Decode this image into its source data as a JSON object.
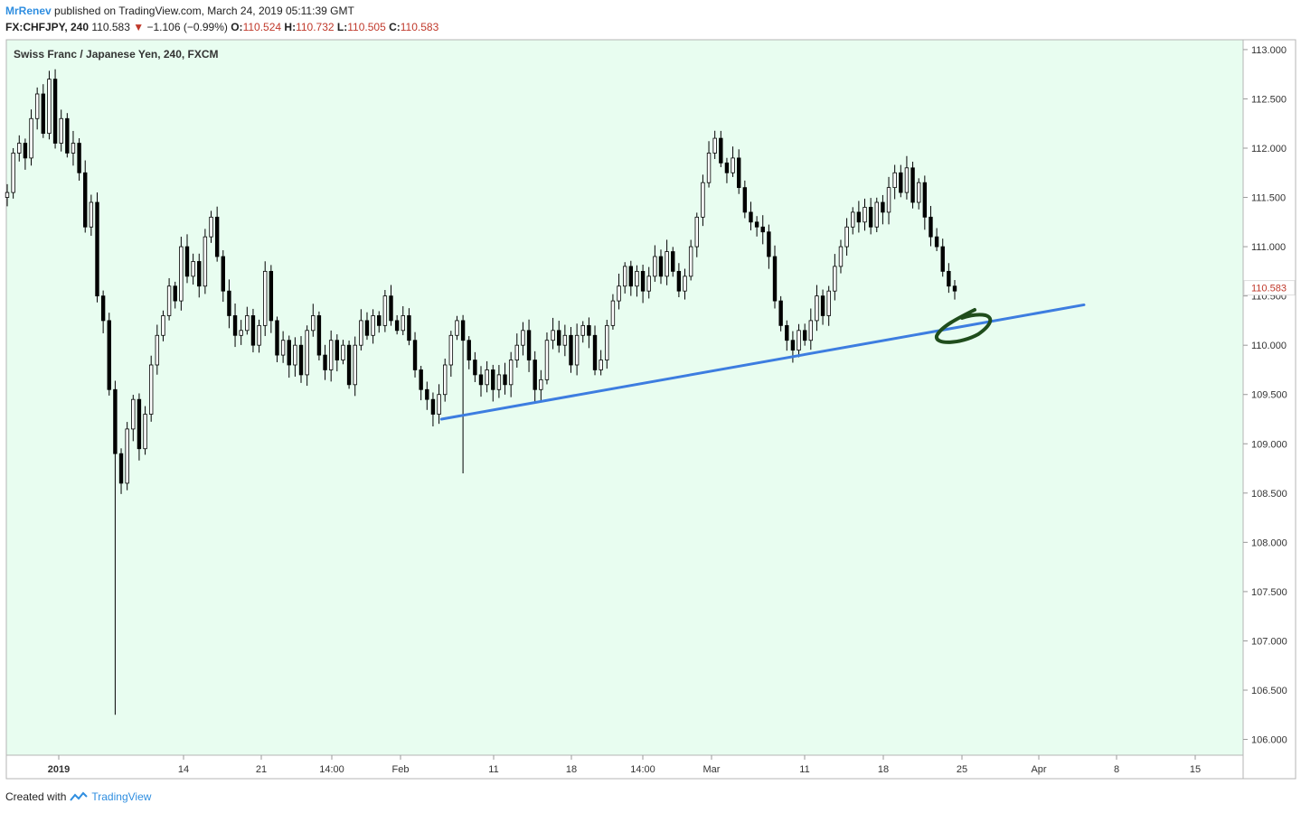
{
  "header": {
    "author": "MrRenev",
    "published_text": "published on TradingView.com, March 24, 2019 05:11:39 GMT",
    "symbol": "FX:CHFJPY, 240",
    "last": "110.583",
    "change_arrow": "▼",
    "change": "−1.106 (−0.99%)",
    "open_label": "O:",
    "open": "110.524",
    "high_label": "H:",
    "high": "110.732",
    "low_label": "L:",
    "low": "110.505",
    "close_label": "C:",
    "close": "110.583"
  },
  "footer": {
    "created_with": "Created with",
    "brand": "TradingView",
    "logo_icon": "tradingview-logo-icon"
  },
  "colors": {
    "background": "#e8fdf0",
    "candle": "#000000",
    "trendline": "#3d7de0",
    "annotation": "#1f4d1c",
    "price_tag_text": "#c0392b"
  },
  "chart_data": {
    "type": "candlestick",
    "title": "Swiss Franc / Japanese Yen, 240, FXCM",
    "y_ticks": [
      "113.000",
      "112.500",
      "112.000",
      "111.500",
      "111.000",
      "110.500",
      "110.000",
      "109.500",
      "109.000",
      "108.500",
      "108.000",
      "107.500",
      "107.000",
      "106.500",
      "106.000"
    ],
    "x_ticks": [
      "2019",
      "14",
      "21",
      "14:00",
      "Feb",
      "11",
      "18",
      "14:00",
      "Mar",
      "11",
      "18",
      "25",
      "Apr",
      "8",
      "15"
    ],
    "ylim": [
      105.84,
      113.1
    ],
    "current_price_label": "110.583",
    "trendline": {
      "from": {
        "date": "2019-01-31",
        "price": 109.25
      },
      "to": {
        "date": "2019-04-10",
        "price": 110.41
      }
    },
    "annotation": "hand-drawn green loop near the trendline around March 25",
    "series_path": [
      [
        0,
        111.55
      ],
      [
        1,
        111.95
      ],
      [
        2,
        112.05
      ],
      [
        3,
        111.9
      ],
      [
        4,
        112.3
      ],
      [
        5,
        112.55
      ],
      [
        6,
        112.15
      ],
      [
        7,
        112.7
      ],
      [
        8,
        112.05
      ],
      [
        9,
        112.3
      ],
      [
        10,
        111.95
      ],
      [
        11,
        112.05
      ],
      [
        12,
        111.75
      ],
      [
        13,
        111.2
      ],
      [
        14,
        111.45
      ],
      [
        15,
        110.5
      ],
      [
        16,
        110.25
      ],
      [
        17,
        109.55
      ],
      [
        18,
        108.9
      ],
      [
        19,
        108.6
      ],
      [
        20,
        109.15
      ],
      [
        21,
        109.45
      ],
      [
        22,
        108.95
      ],
      [
        23,
        109.3
      ],
      [
        24,
        109.8
      ],
      [
        25,
        110.1
      ],
      [
        26,
        110.3
      ],
      [
        27,
        110.6
      ],
      [
        28,
        110.45
      ],
      [
        29,
        111.0
      ],
      [
        30,
        110.7
      ],
      [
        31,
        110.85
      ],
      [
        32,
        110.6
      ],
      [
        33,
        111.1
      ],
      [
        34,
        111.3
      ],
      [
        35,
        110.9
      ],
      [
        36,
        110.55
      ],
      [
        37,
        110.3
      ],
      [
        38,
        110.1
      ],
      [
        39,
        110.15
      ],
      [
        40,
        110.3
      ],
      [
        41,
        110.0
      ],
      [
        42,
        110.2
      ],
      [
        43,
        110.75
      ],
      [
        44,
        110.25
      ],
      [
        45,
        109.9
      ],
      [
        46,
        110.05
      ],
      [
        47,
        109.8
      ],
      [
        48,
        110.0
      ],
      [
        49,
        109.7
      ],
      [
        50,
        110.15
      ],
      [
        51,
        110.3
      ],
      [
        52,
        109.9
      ],
      [
        53,
        109.75
      ],
      [
        54,
        110.05
      ],
      [
        55,
        109.85
      ],
      [
        56,
        110.0
      ],
      [
        57,
        109.6
      ],
      [
        58,
        110.0
      ],
      [
        59,
        110.25
      ],
      [
        60,
        110.1
      ],
      [
        61,
        110.3
      ],
      [
        62,
        110.2
      ],
      [
        63,
        110.5
      ],
      [
        64,
        110.25
      ],
      [
        65,
        110.15
      ],
      [
        66,
        110.3
      ],
      [
        67,
        110.05
      ],
      [
        68,
        109.75
      ],
      [
        69,
        109.55
      ],
      [
        70,
        109.45
      ],
      [
        71,
        109.3
      ],
      [
        72,
        109.5
      ],
      [
        73,
        109.8
      ],
      [
        74,
        110.1
      ],
      [
        75,
        110.25
      ],
      [
        76,
        110.05
      ],
      [
        77,
        109.85
      ],
      [
        78,
        109.7
      ],
      [
        79,
        109.6
      ],
      [
        80,
        109.75
      ],
      [
        81,
        109.55
      ],
      [
        82,
        109.7
      ],
      [
        83,
        109.6
      ],
      [
        84,
        109.85
      ],
      [
        85,
        110.0
      ],
      [
        86,
        110.15
      ],
      [
        87,
        109.85
      ],
      [
        88,
        109.55
      ],
      [
        89,
        109.65
      ],
      [
        90,
        110.05
      ],
      [
        91,
        110.15
      ],
      [
        92,
        110.0
      ],
      [
        93,
        110.1
      ],
      [
        94,
        109.8
      ],
      [
        95,
        110.1
      ],
      [
        96,
        110.2
      ],
      [
        97,
        110.1
      ],
      [
        98,
        109.75
      ],
      [
        99,
        109.85
      ],
      [
        100,
        110.2
      ],
      [
        101,
        110.45
      ],
      [
        102,
        110.6
      ],
      [
        103,
        110.8
      ],
      [
        104,
        110.6
      ],
      [
        105,
        110.75
      ],
      [
        106,
        110.55
      ],
      [
        107,
        110.7
      ],
      [
        108,
        110.9
      ],
      [
        109,
        110.7
      ],
      [
        110,
        110.95
      ],
      [
        111,
        110.75
      ],
      [
        112,
        110.55
      ],
      [
        113,
        110.7
      ],
      [
        114,
        111.0
      ],
      [
        115,
        111.3
      ],
      [
        116,
        111.65
      ],
      [
        117,
        111.95
      ],
      [
        118,
        112.1
      ],
      [
        119,
        111.85
      ],
      [
        120,
        111.75
      ],
      [
        121,
        111.9
      ],
      [
        122,
        111.6
      ],
      [
        123,
        111.35
      ],
      [
        124,
        111.25
      ],
      [
        125,
        111.2
      ],
      [
        126,
        111.15
      ],
      [
        127,
        110.9
      ],
      [
        128,
        110.45
      ],
      [
        129,
        110.2
      ],
      [
        130,
        110.05
      ],
      [
        131,
        109.95
      ],
      [
        132,
        110.15
      ],
      [
        133,
        110.05
      ],
      [
        134,
        110.25
      ],
      [
        135,
        110.5
      ],
      [
        136,
        110.3
      ],
      [
        137,
        110.55
      ],
      [
        138,
        110.8
      ],
      [
        139,
        111.0
      ],
      [
        140,
        111.2
      ],
      [
        141,
        111.35
      ],
      [
        142,
        111.25
      ],
      [
        143,
        111.4
      ],
      [
        144,
        111.2
      ],
      [
        145,
        111.45
      ],
      [
        146,
        111.35
      ],
      [
        147,
        111.6
      ],
      [
        148,
        111.75
      ],
      [
        149,
        111.55
      ],
      [
        150,
        111.8
      ],
      [
        151,
        111.45
      ],
      [
        152,
        111.65
      ],
      [
        153,
        111.3
      ],
      [
        154,
        111.1
      ],
      [
        155,
        111.0
      ],
      [
        156,
        110.75
      ],
      [
        157,
        110.6
      ],
      [
        158,
        110.55
      ]
    ]
  }
}
